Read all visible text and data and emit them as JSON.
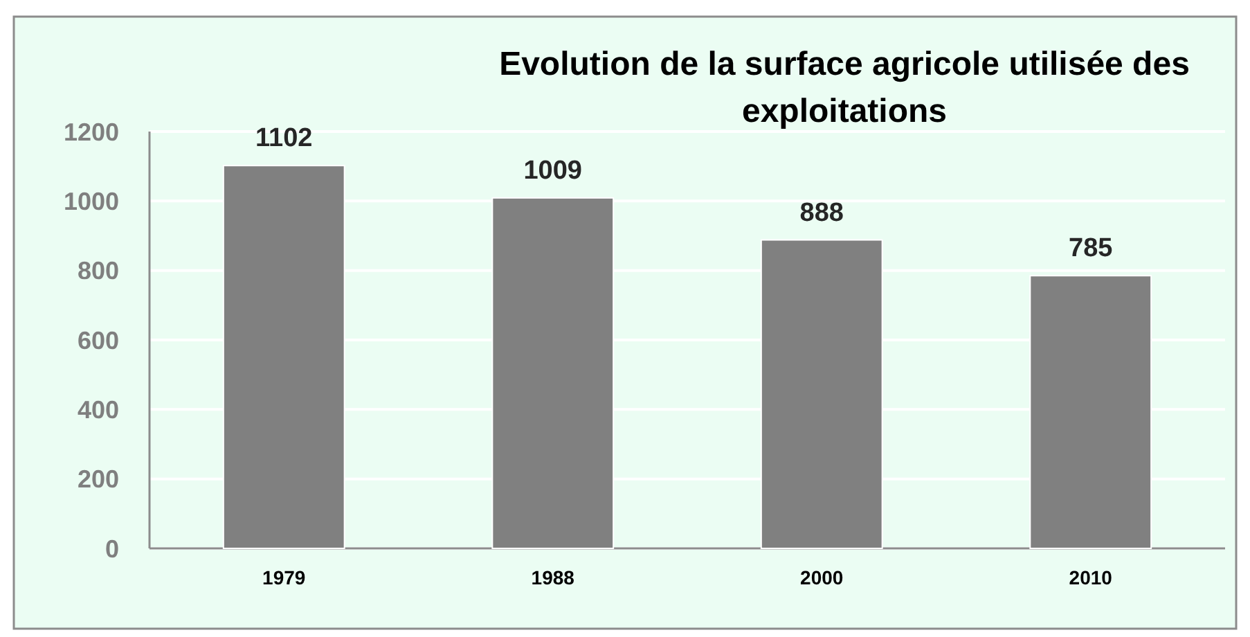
{
  "chart_data": {
    "type": "bar",
    "title": "Evolution de la surface agricole utilisée des exploitations",
    "categories": [
      "1979",
      "1988",
      "2000",
      "2010"
    ],
    "values": [
      1102,
      1009,
      888,
      785
    ],
    "color": "#808080",
    "ylim": [
      0,
      1200
    ],
    "yticks": [
      0,
      200,
      400,
      600,
      800,
      1000,
      1200
    ],
    "grid": "y",
    "data_labels": true
  }
}
